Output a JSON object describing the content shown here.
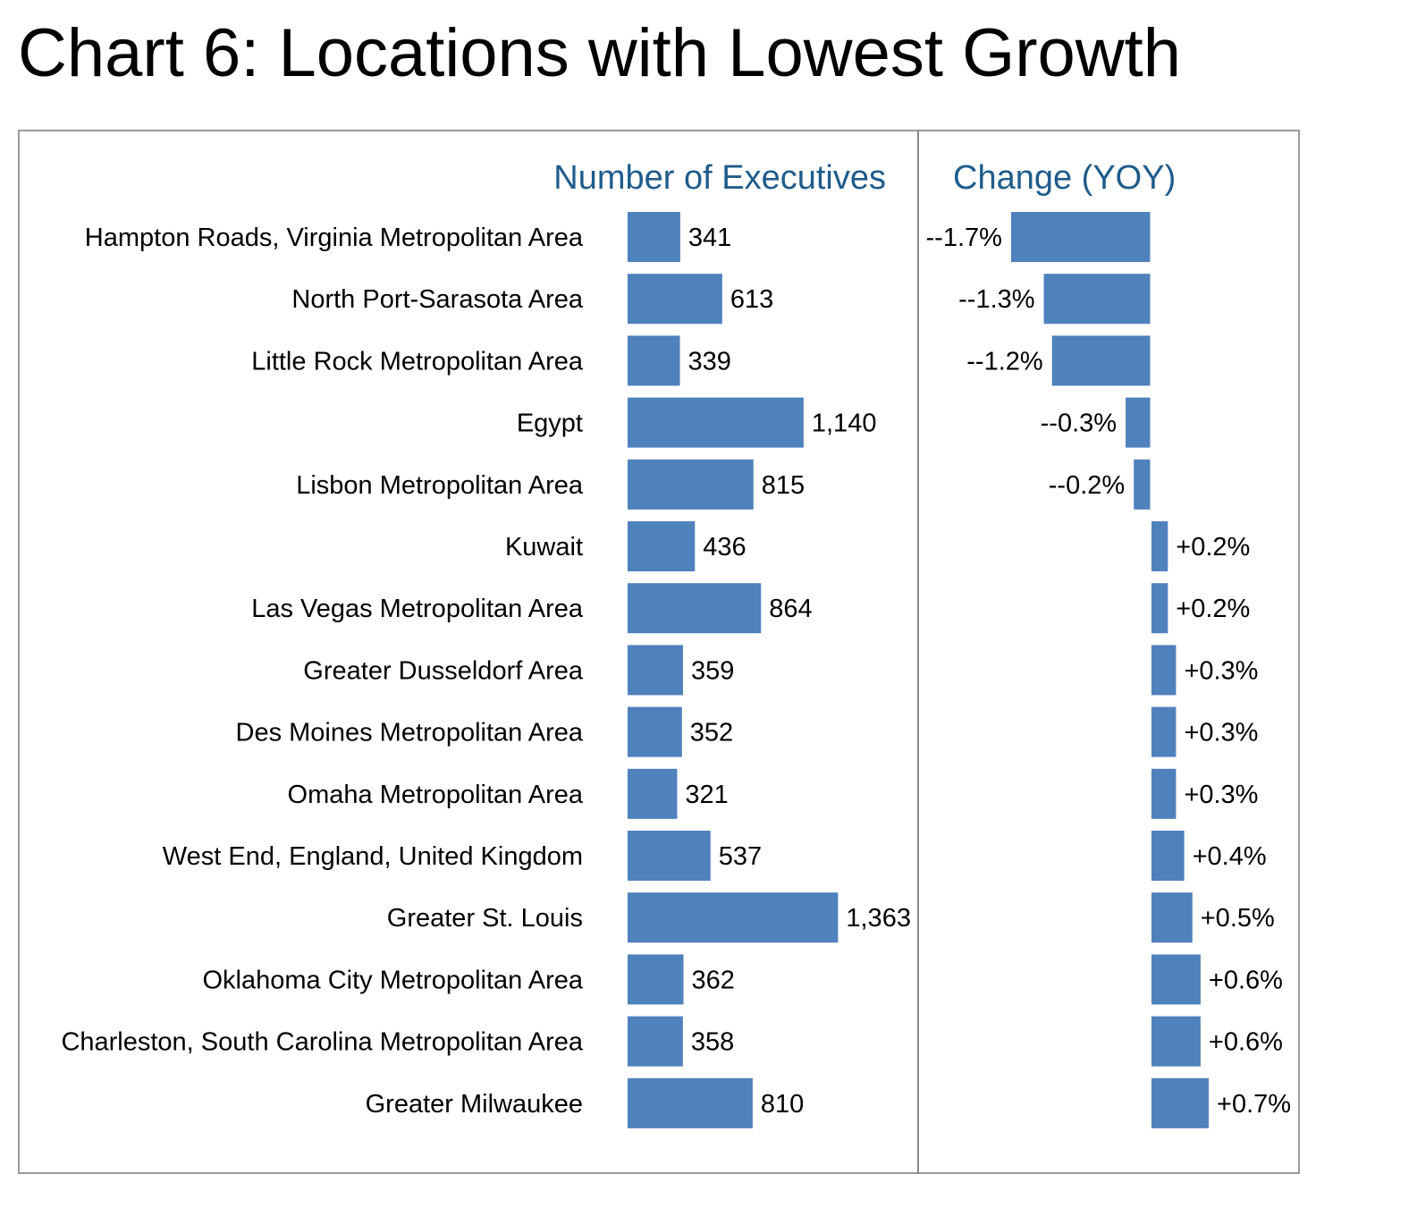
{
  "title": "Chart 6: Locations with Lowest Growth",
  "chart_data": {
    "type": "bar",
    "orientation": "horizontal",
    "categories": [
      "Hampton Roads, Virginia Metropolitan Area",
      "North Port-Sarasota Area",
      "Little Rock Metropolitan Area",
      "Egypt",
      "Lisbon Metropolitan Area",
      "Kuwait",
      "Las Vegas Metropolitan Area",
      "Greater Dusseldorf Area",
      "Des Moines Metropolitan Area",
      "Omaha Metropolitan Area",
      "West End, England, United Kingdom",
      "Greater St. Louis",
      "Oklahoma City Metropolitan Area",
      "Charleston, South Carolina Metropolitan Area",
      "Greater Milwaukee"
    ],
    "panels": [
      {
        "title": "Number of Executives",
        "values": [
          341,
          613,
          339,
          1140,
          815,
          436,
          864,
          359,
          352,
          321,
          537,
          1363,
          362,
          358,
          810
        ],
        "labels": [
          "341",
          "613",
          "339",
          "1,140",
          "815",
          "436",
          "864",
          "359",
          "352",
          "321",
          "537",
          "1,363",
          "362",
          "358",
          "810"
        ]
      },
      {
        "title": "Change (YOY)",
        "unit": "%",
        "values": [
          -1.7,
          -1.3,
          -1.2,
          -0.3,
          -0.2,
          0.2,
          0.2,
          0.3,
          0.3,
          0.3,
          0.4,
          0.5,
          0.6,
          0.6,
          0.7
        ],
        "labels": [
          "--1.7%",
          "--1.3%",
          "--1.2%",
          "--0.3%",
          "--0.2%",
          "+0.2%",
          "+0.2%",
          "+0.3%",
          "+0.3%",
          "+0.3%",
          "+0.4%",
          "+0.5%",
          "+0.6%",
          "+0.6%",
          "+0.7%"
        ]
      }
    ],
    "bar_color": "#4f81bd",
    "title_color": "#1f5c8b",
    "grid": false,
    "legend": "none"
  }
}
